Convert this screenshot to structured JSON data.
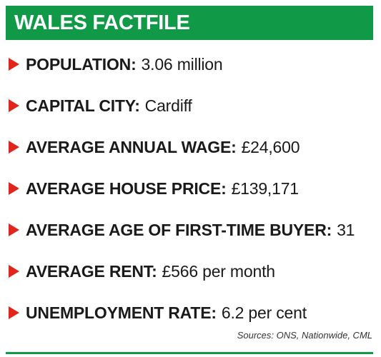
{
  "header": {
    "title": "WALES FACTFILE",
    "background_color": "#109a47",
    "text_color": "#ffffff"
  },
  "bullet": {
    "icon": "red-triangle-arrow-icon",
    "color": "#e0251b"
  },
  "facts": [
    {
      "label": "POPULATION:",
      "value": "3.06 million"
    },
    {
      "label": "CAPITAL CITY:",
      "value": "Cardiff"
    },
    {
      "label": "AVERAGE ANNUAL WAGE:",
      "value": "£24,600"
    },
    {
      "label": "AVERAGE HOUSE PRICE:",
      "value": "£139,171"
    },
    {
      "label": "AVERAGE AGE OF FIRST-TIME BUYER:",
      "value": "31"
    },
    {
      "label": "AVERAGE RENT:",
      "value": "£566 per month"
    },
    {
      "label": "UNEMPLOYMENT RATE:",
      "value": "6.2 per cent"
    }
  ],
  "sources": "Sources: ONS, Nationwide, CML"
}
